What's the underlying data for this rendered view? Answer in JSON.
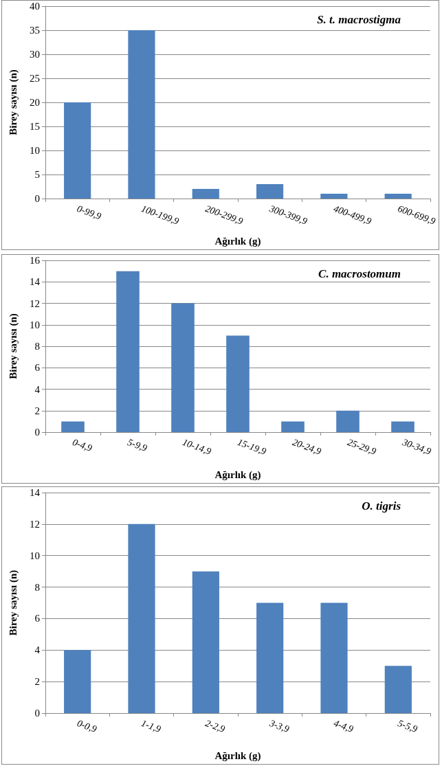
{
  "chart_data": [
    {
      "type": "bar",
      "title": "S. t. macrostigma",
      "xlabel": "Ağırlık (g)",
      "ylabel": "Birey sayısı (n)",
      "categories": [
        "0-99,9",
        "100-199,9",
        "200-299,9",
        "300-399,9",
        "400-499,9",
        "600-699,9"
      ],
      "values": [
        20,
        35,
        2,
        3,
        1,
        1
      ],
      "color": "#4f81bd",
      "ylim": [
        0,
        40
      ],
      "yticks": [
        0,
        5,
        10,
        15,
        20,
        25,
        30,
        35,
        40
      ],
      "grid": "y"
    },
    {
      "type": "bar",
      "title": "C. macrostomum",
      "xlabel": "Ağırlık (g)",
      "ylabel": "Birey sayısı (n)",
      "categories": [
        "0-4,9",
        "5-9,9",
        "10-14,9",
        "15-19,9",
        "20-24,9",
        "25-29,9",
        "30-34,9"
      ],
      "values": [
        1,
        15,
        12,
        9,
        1,
        2,
        1
      ],
      "color": "#4f81bd",
      "ylim": [
        0,
        16
      ],
      "yticks": [
        0,
        2,
        4,
        6,
        8,
        10,
        12,
        14,
        16
      ],
      "grid": "y"
    },
    {
      "type": "bar",
      "title": "O. tigris",
      "xlabel": "Ağırlık (g)",
      "ylabel": "Birey sayısı (n)",
      "categories": [
        "0-0,9",
        "1-1,9",
        "2-2,9",
        "3-3,9",
        "4-4,9",
        "5-5,9"
      ],
      "values": [
        4,
        12,
        9,
        7,
        7,
        3
      ],
      "color": "#4f81bd",
      "ylim": [
        0,
        14
      ],
      "yticks": [
        0,
        2,
        4,
        6,
        8,
        10,
        12,
        14
      ],
      "grid": "y"
    }
  ]
}
